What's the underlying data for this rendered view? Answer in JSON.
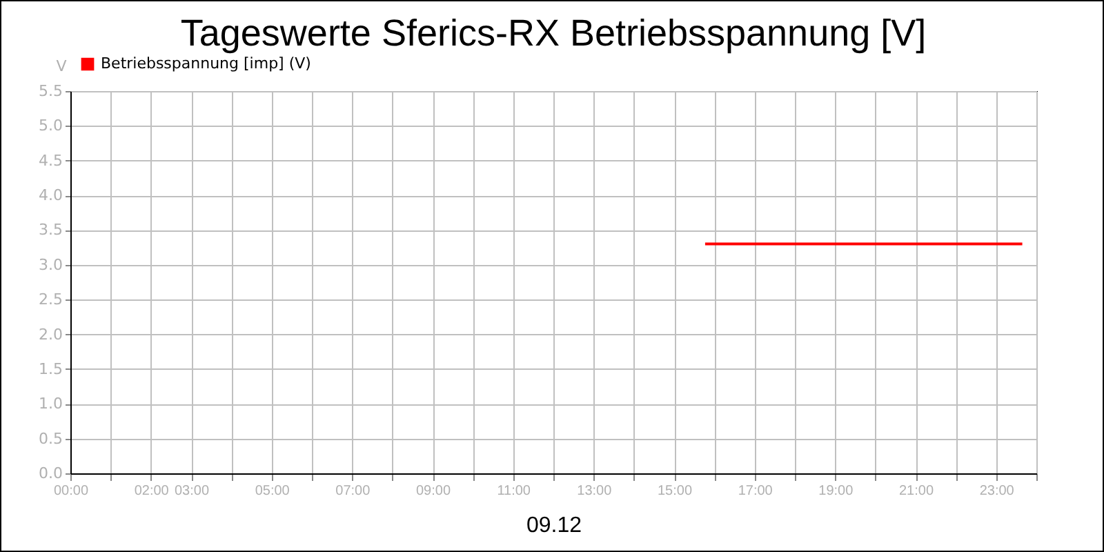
{
  "chart_data": {
    "type": "line",
    "title": "Tageswerte Sferics-RX Betriebsspannung [V]",
    "xlabel": "09.12",
    "ylabel": "V",
    "x": [
      15.77,
      23.65
    ],
    "series": [
      {
        "name": "Betriebsspannung [imp] (V)",
        "color": "#ff0000",
        "values": [
          3.3,
          3.3
        ]
      }
    ],
    "xlim": [
      0,
      24
    ],
    "xticks": [
      {
        "value": 0,
        "label": "00:00"
      },
      {
        "value": 1,
        "label": null
      },
      {
        "value": 2,
        "label": "02:00"
      },
      {
        "value": 3,
        "label": "03:00"
      },
      {
        "value": 4,
        "label": null
      },
      {
        "value": 5,
        "label": "05:00"
      },
      {
        "value": 6,
        "label": null
      },
      {
        "value": 7,
        "label": "07:00"
      },
      {
        "value": 8,
        "label": null
      },
      {
        "value": 9,
        "label": "09:00"
      },
      {
        "value": 10,
        "label": null
      },
      {
        "value": 11,
        "label": "11:00"
      },
      {
        "value": 12,
        "label": null
      },
      {
        "value": 13,
        "label": "13:00"
      },
      {
        "value": 14,
        "label": null
      },
      {
        "value": 15,
        "label": "15:00"
      },
      {
        "value": 16,
        "label": null
      },
      {
        "value": 17,
        "label": "17:00"
      },
      {
        "value": 18,
        "label": null
      },
      {
        "value": 19,
        "label": "19:00"
      },
      {
        "value": 20,
        "label": null
      },
      {
        "value": 21,
        "label": "21:00"
      },
      {
        "value": 22,
        "label": null
      },
      {
        "value": 23,
        "label": "23:00"
      },
      {
        "value": 24,
        "label": null
      }
    ],
    "ylim": [
      0,
      5.5
    ],
    "yticks": [
      {
        "value": 0,
        "label": "0.0"
      },
      {
        "value": 0.5,
        "label": "0.5"
      },
      {
        "value": 1,
        "label": "1.0"
      },
      {
        "value": 1.5,
        "label": "1.5"
      },
      {
        "value": 2,
        "label": "2.0"
      },
      {
        "value": 2.5,
        "label": "2.5"
      },
      {
        "value": 3,
        "label": "3.0"
      },
      {
        "value": 3.5,
        "label": "3.5"
      },
      {
        "value": 4,
        "label": "4.0"
      },
      {
        "value": 4.5,
        "label": "4.5"
      },
      {
        "value": 5,
        "label": "5.0"
      },
      {
        "value": 5.5,
        "label": "5.5"
      }
    ],
    "grid": true,
    "legend": "top left",
    "marker": "none",
    "line_style": "solid"
  }
}
